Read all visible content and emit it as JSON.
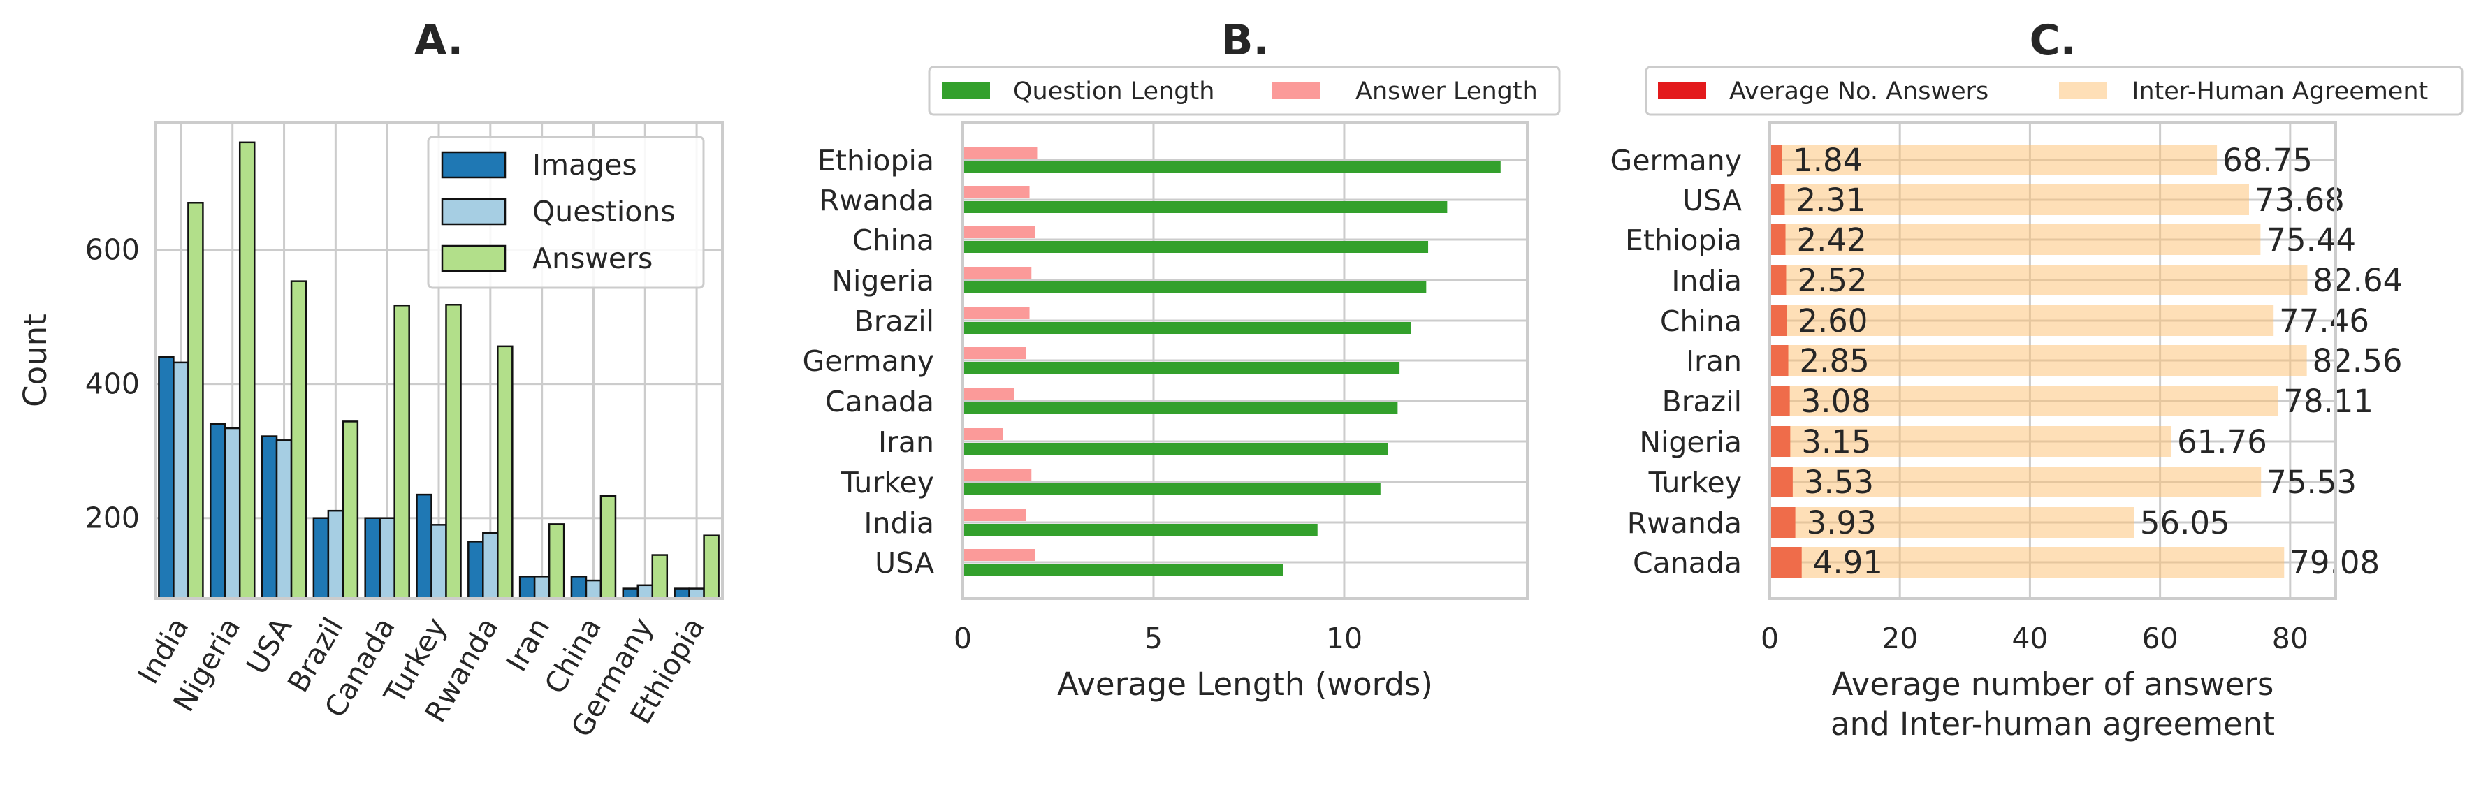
{
  "colors": {
    "images": "#1f78b4",
    "questions": "#a6cee3",
    "answers": "#b2df8a",
    "question_length": "#33a02c",
    "answer_length": "#fb9a99",
    "avg_answers": "#e31a1c",
    "avg_answers_bar": "#ef6c4a",
    "agreement": "#fdbf6f"
  },
  "chart_data": [
    {
      "type": "bar",
      "title": "A.",
      "ylabel": "Count",
      "xlabel": "",
      "categories": [
        "India",
        "Nigeria",
        "USA",
        "Brazil",
        "Canada",
        "Turkey",
        "Rwanda",
        "Iran",
        "China",
        "Germany",
        "Ethiopia"
      ],
      "series": [
        {
          "name": "Images",
          "values": [
            440,
            340,
            322,
            200,
            200,
            235,
            165,
            113,
            113,
            95,
            95
          ]
        },
        {
          "name": "Questions",
          "values": [
            432,
            334,
            316,
            211,
            200,
            190,
            178,
            113,
            107,
            100,
            95
          ]
        },
        {
          "name": "Answers",
          "values": [
            670,
            760,
            553,
            344,
            517,
            518,
            456,
            191,
            233,
            145,
            174
          ]
        }
      ],
      "ylim": [
        80,
        790
      ],
      "yticks": [
        200,
        400,
        600
      ],
      "grid": true,
      "legend": "top-right"
    },
    {
      "type": "bar",
      "orientation": "horizontal",
      "title": "B.",
      "xlabel": "Average Length (words)",
      "ylabel": "",
      "categories": [
        "Ethiopia",
        "Rwanda",
        "China",
        "Nigeria",
        "Brazil",
        "Germany",
        "Canada",
        "Iran",
        "Turkey",
        "India",
        "USA"
      ],
      "series": [
        {
          "name": "Question Length",
          "values": [
            14.1,
            12.7,
            12.2,
            12.15,
            11.75,
            11.45,
            11.4,
            11.15,
            10.95,
            9.3,
            8.4
          ]
        },
        {
          "name": "Answer Length",
          "values": [
            1.95,
            1.75,
            1.9,
            1.8,
            1.75,
            1.65,
            1.35,
            1.05,
            1.8,
            1.65,
            1.9
          ]
        }
      ],
      "xlim": [
        0,
        14.8
      ],
      "xticks": [
        0,
        5,
        10
      ],
      "grid": true,
      "legend": "top"
    },
    {
      "type": "bar",
      "orientation": "horizontal",
      "title": "C.",
      "xlabel": [
        "Average number of answers",
        "and Inter-human agreement"
      ],
      "ylabel": "",
      "categories": [
        "Germany",
        "USA",
        "Ethiopia",
        "India",
        "China",
        "Iran",
        "Brazil",
        "Nigeria",
        "Turkey",
        "Rwanda",
        "Canada"
      ],
      "series": [
        {
          "name": "Average No. Answers",
          "values": [
            1.84,
            2.31,
            2.42,
            2.52,
            2.6,
            2.85,
            3.08,
            3.15,
            3.53,
            3.93,
            4.91
          ],
          "labels": [
            "1.84",
            "2.31",
            "2.42",
            "2.52",
            "2.60",
            "2.85",
            "3.08",
            "3.15",
            "3.53",
            "3.93",
            "4.91"
          ]
        },
        {
          "name": "Inter-Human Agreement",
          "values": [
            68.75,
            73.68,
            75.44,
            82.64,
            77.46,
            82.56,
            78.11,
            61.76,
            75.53,
            56.05,
            79.08
          ],
          "labels": [
            "68.75",
            "73.68",
            "75.44",
            "82.64",
            "77.46",
            "82.56",
            "78.11",
            "61.76",
            "75.53",
            "56.05",
            "79.08"
          ]
        }
      ],
      "xlim": [
        0,
        87
      ],
      "xticks": [
        0,
        20,
        40,
        60,
        80
      ],
      "grid": true,
      "legend": "top"
    }
  ]
}
